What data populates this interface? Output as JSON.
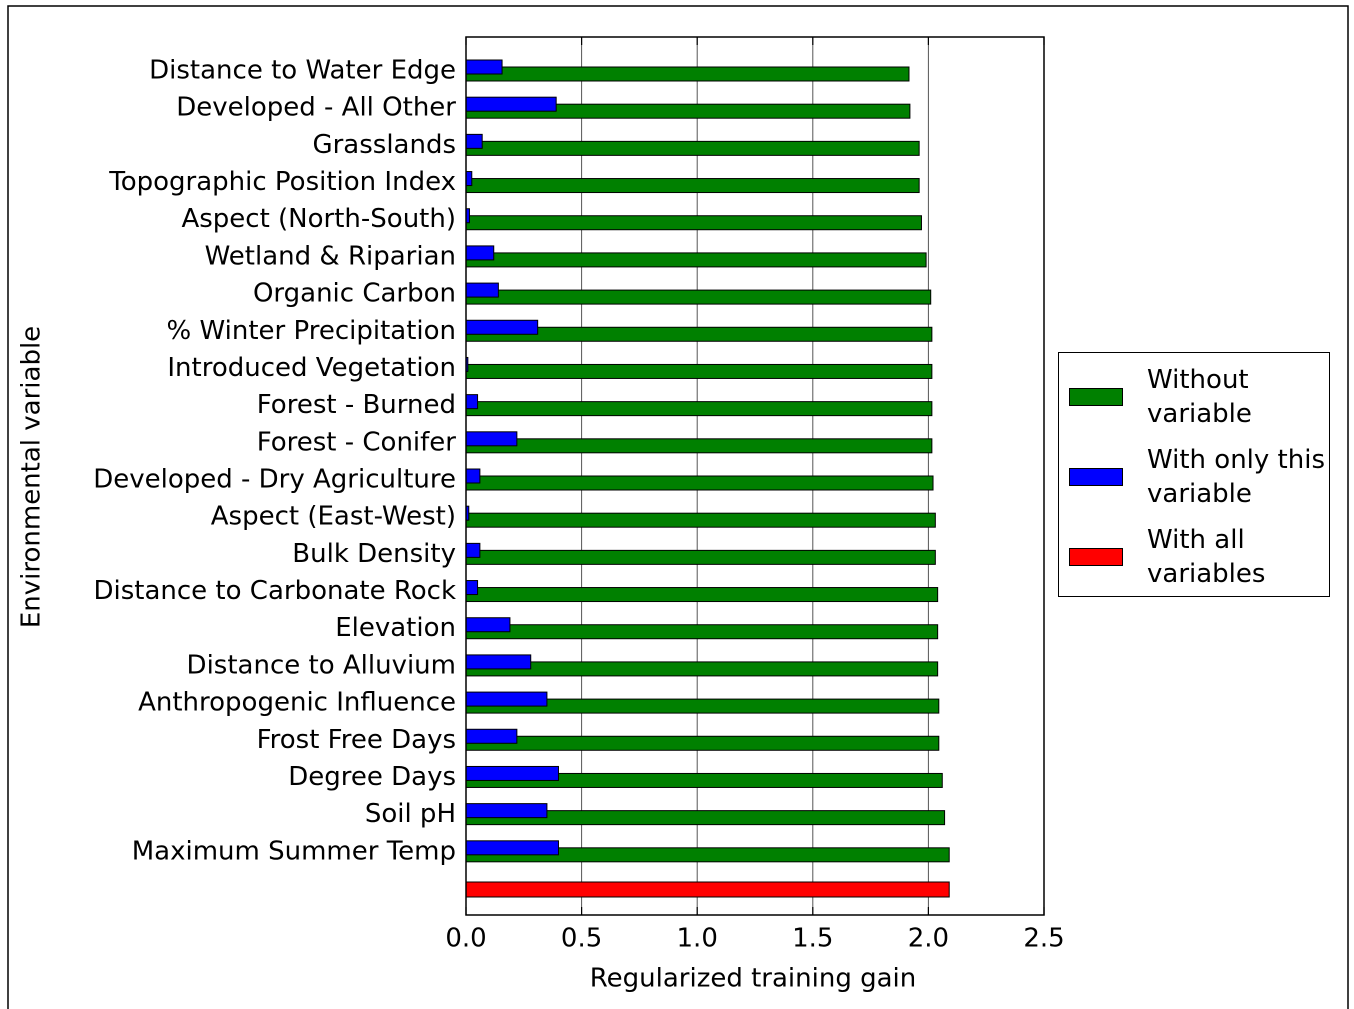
{
  "chart_data": {
    "type": "bar",
    "orientation": "horizontal",
    "x_label": "Regularized training gain",
    "y_label": "Environmental variable",
    "categories": [
      "Distance to Water Edge",
      "Developed - All Other",
      "Grasslands",
      "Topographic Position Index",
      "Aspect (North-South)",
      "Wetland & Riparian",
      "Organic Carbon",
      "% Winter Precipitation",
      "Introduced Vegetation",
      "Forest - Burned",
      "Forest - Conifer",
      "Developed - Dry Agriculture",
      "Aspect (East-West)",
      "Bulk Density",
      "Distance to Carbonate Rock",
      "Elevation",
      "Distance to Alluvium",
      "Anthropogenic Influence",
      "Frost Free Days",
      "Degree Days",
      "Soil pH",
      "Maximum Summer Temp",
      null
    ],
    "series": [
      {
        "name": "Without variable",
        "color": "#008000",
        "values": [
          1.916,
          1.92,
          1.96,
          1.96,
          1.97,
          1.99,
          2.01,
          2.015,
          2.015,
          2.015,
          2.015,
          2.02,
          2.03,
          2.03,
          2.04,
          2.04,
          2.04,
          2.045,
          2.045,
          2.06,
          2.07,
          2.09,
          null
        ]
      },
      {
        "name": "With only this variable",
        "color": "#0000ff",
        "values": [
          0.156,
          0.39,
          0.07,
          0.025,
          0.015,
          0.12,
          0.14,
          0.31,
          0.008,
          0.05,
          0.22,
          0.06,
          0.012,
          0.06,
          0.05,
          0.19,
          0.28,
          0.35,
          0.22,
          0.4,
          0.35,
          0.4,
          null
        ]
      },
      {
        "name": "With all variables",
        "color": "#ff0000",
        "values": [
          null,
          null,
          null,
          null,
          null,
          null,
          null,
          null,
          null,
          null,
          null,
          null,
          null,
          null,
          null,
          null,
          null,
          null,
          null,
          null,
          null,
          null,
          2.09
        ]
      }
    ],
    "xlim": [
      0,
      2.5
    ],
    "xticks": [
      {
        "value": 0,
        "label": "0.0"
      },
      0.5,
      {
        "value": 1,
        "label": "1.0"
      },
      1.5,
      {
        "value": 2,
        "label": "2.0"
      },
      2.5
    ],
    "grid": true,
    "legend": "right"
  }
}
